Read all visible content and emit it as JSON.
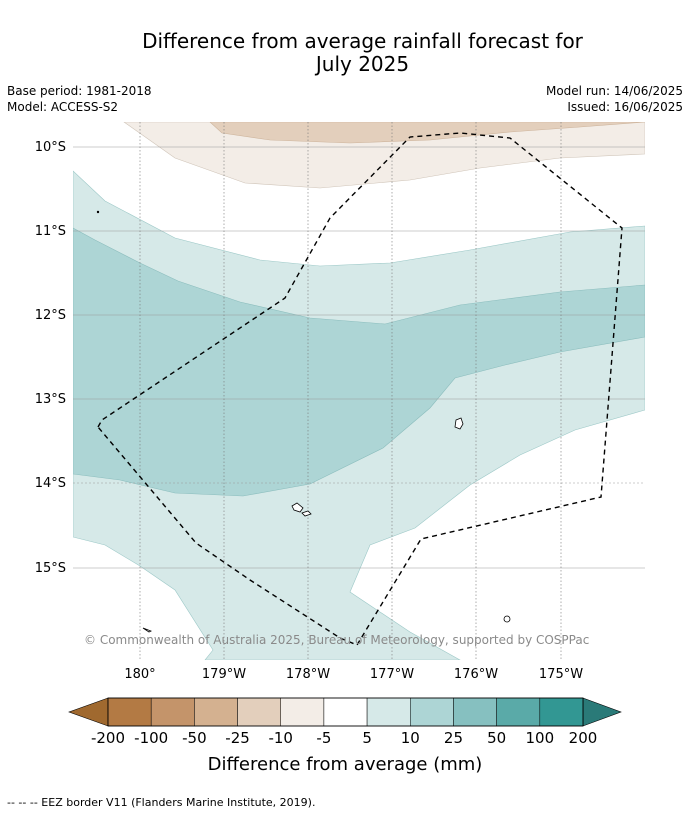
{
  "title_line1": "Difference from average rainfall forecast for",
  "title_line2": "July 2025",
  "meta": {
    "base_period": "Base period: 1981-2018",
    "model": "Model: ACCESS-S2",
    "model_run": "Model run: 14/06/2025",
    "issued": "Issued: 16/06/2025"
  },
  "axes": {
    "lat_labels": [
      "10°S",
      "11°S",
      "12°S",
      "13°S",
      "14°S",
      "15°S"
    ],
    "lon_labels": [
      "180°",
      "179°W",
      "178°W",
      "177°W",
      "176°W",
      "175°W"
    ]
  },
  "map": {
    "copyright": "© Commonwealth of Australia 2025, Bureau of Meteorology, supported by COSPPac"
  },
  "colorbar": {
    "tick_labels": [
      "-200",
      "-100",
      "-50",
      "-25",
      "-10",
      "-5",
      "5",
      "10",
      "25",
      "50",
      "100",
      "200"
    ],
    "label": "Difference from average (mm)",
    "colors": [
      "#a0692f",
      "#b37a44",
      "#c4946a",
      "#d4b190",
      "#e3cfbc",
      "#f3ede7",
      "#ffffff",
      "#d6e9e8",
      "#add5d5",
      "#86c0c0",
      "#5aaaa8",
      "#329793",
      "#2a7a78"
    ]
  },
  "legend_note": "--  --  -- EEZ border V11 (Flanders Marine Institute, 2019)."
}
